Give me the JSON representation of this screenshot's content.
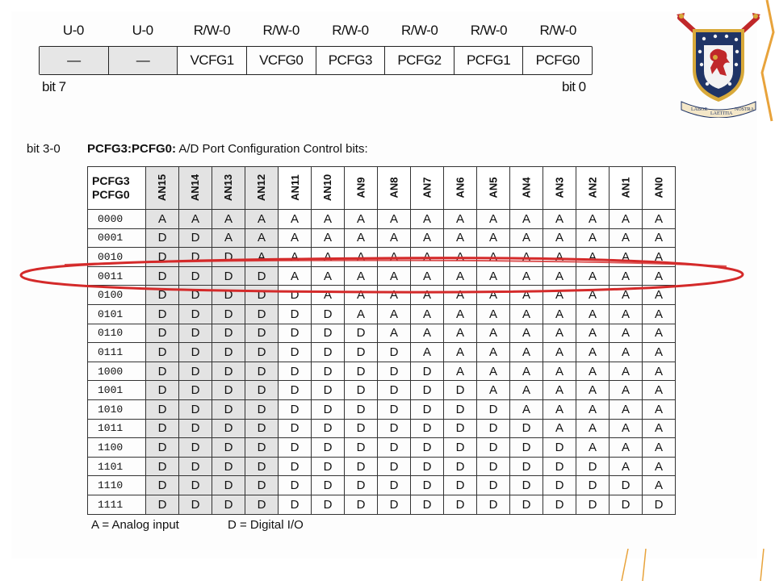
{
  "register": {
    "attributes": [
      "U-0",
      "U-0",
      "R/W-0",
      "R/W-0",
      "R/W-0",
      "R/W-0",
      "R/W-0",
      "R/W-0"
    ],
    "bits": [
      "—",
      "—",
      "VCFG1",
      "VCFG0",
      "PCFG3",
      "PCFG2",
      "PCFG1",
      "PCFG0"
    ],
    "bit_high_label": "bit 7",
    "bit_low_label": "bit 0"
  },
  "description": {
    "bit_range": "bit 3-0",
    "field_name": "PCFG3:PCFG0:",
    "field_desc": " A/D Port Configuration Control bits:"
  },
  "table": {
    "corner_line1": "PCFG3",
    "corner_line2": "PCFG0",
    "columns": [
      "AN15",
      "AN14",
      "AN13",
      "AN12",
      "AN11",
      "AN10",
      "AN9",
      "AN8",
      "AN7",
      "AN6",
      "AN5",
      "AN4",
      "AN3",
      "AN2",
      "AN1",
      "AN0"
    ],
    "rows": [
      {
        "code": "0000",
        "values": [
          "A",
          "A",
          "A",
          "A",
          "A",
          "A",
          "A",
          "A",
          "A",
          "A",
          "A",
          "A",
          "A",
          "A",
          "A",
          "A"
        ]
      },
      {
        "code": "0001",
        "values": [
          "D",
          "D",
          "A",
          "A",
          "A",
          "A",
          "A",
          "A",
          "A",
          "A",
          "A",
          "A",
          "A",
          "A",
          "A",
          "A"
        ]
      },
      {
        "code": "0010",
        "values": [
          "D",
          "D",
          "D",
          "A",
          "A",
          "A",
          "A",
          "A",
          "A",
          "A",
          "A",
          "A",
          "A",
          "A",
          "A",
          "A"
        ]
      },
      {
        "code": "0011",
        "values": [
          "D",
          "D",
          "D",
          "D",
          "A",
          "A",
          "A",
          "A",
          "A",
          "A",
          "A",
          "A",
          "A",
          "A",
          "A",
          "A"
        ]
      },
      {
        "code": "0100",
        "values": [
          "D",
          "D",
          "D",
          "D",
          "D",
          "A",
          "A",
          "A",
          "A",
          "A",
          "A",
          "A",
          "A",
          "A",
          "A",
          "A"
        ]
      },
      {
        "code": "0101",
        "values": [
          "D",
          "D",
          "D",
          "D",
          "D",
          "D",
          "A",
          "A",
          "A",
          "A",
          "A",
          "A",
          "A",
          "A",
          "A",
          "A"
        ]
      },
      {
        "code": "0110",
        "values": [
          "D",
          "D",
          "D",
          "D",
          "D",
          "D",
          "D",
          "A",
          "A",
          "A",
          "A",
          "A",
          "A",
          "A",
          "A",
          "A"
        ]
      },
      {
        "code": "0111",
        "values": [
          "D",
          "D",
          "D",
          "D",
          "D",
          "D",
          "D",
          "D",
          "A",
          "A",
          "A",
          "A",
          "A",
          "A",
          "A",
          "A"
        ]
      },
      {
        "code": "1000",
        "values": [
          "D",
          "D",
          "D",
          "D",
          "D",
          "D",
          "D",
          "D",
          "D",
          "A",
          "A",
          "A",
          "A",
          "A",
          "A",
          "A"
        ]
      },
      {
        "code": "1001",
        "values": [
          "D",
          "D",
          "D",
          "D",
          "D",
          "D",
          "D",
          "D",
          "D",
          "D",
          "A",
          "A",
          "A",
          "A",
          "A",
          "A"
        ]
      },
      {
        "code": "1010",
        "values": [
          "D",
          "D",
          "D",
          "D",
          "D",
          "D",
          "D",
          "D",
          "D",
          "D",
          "D",
          "A",
          "A",
          "A",
          "A",
          "A"
        ]
      },
      {
        "code": "1011",
        "values": [
          "D",
          "D",
          "D",
          "D",
          "D",
          "D",
          "D",
          "D",
          "D",
          "D",
          "D",
          "D",
          "A",
          "A",
          "A",
          "A"
        ]
      },
      {
        "code": "1100",
        "values": [
          "D",
          "D",
          "D",
          "D",
          "D",
          "D",
          "D",
          "D",
          "D",
          "D",
          "D",
          "D",
          "D",
          "A",
          "A",
          "A"
        ]
      },
      {
        "code": "1101",
        "values": [
          "D",
          "D",
          "D",
          "D",
          "D",
          "D",
          "D",
          "D",
          "D",
          "D",
          "D",
          "D",
          "D",
          "D",
          "A",
          "A"
        ]
      },
      {
        "code": "1110",
        "values": [
          "D",
          "D",
          "D",
          "D",
          "D",
          "D",
          "D",
          "D",
          "D",
          "D",
          "D",
          "D",
          "D",
          "D",
          "D",
          "A"
        ]
      },
      {
        "code": "1111",
        "values": [
          "D",
          "D",
          "D",
          "D",
          "D",
          "D",
          "D",
          "D",
          "D",
          "D",
          "D",
          "D",
          "D",
          "D",
          "D",
          "D"
        ]
      }
    ],
    "highlighted_code": "0011"
  },
  "legend": {
    "analog": "A = Analog input",
    "digital": "D = Digital I/O"
  },
  "crest": {
    "motto_left": "LABOR",
    "motto_center": "LAETITIA",
    "motto_right": "NOSTRA"
  },
  "colors": {
    "highlight_ellipse": "#d42a2a",
    "crest_red": "#c0282a",
    "crest_navy": "#1f3466",
    "crest_gold": "#d8a93a",
    "accent_orange": "#e8a33b"
  }
}
